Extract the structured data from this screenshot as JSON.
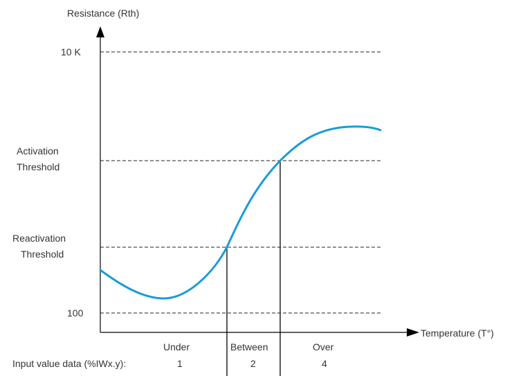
{
  "y_axis": {
    "label": "Resistance (Rth)"
  },
  "x_axis": {
    "label": "Temperature (T°)"
  },
  "levels": {
    "ten_k": "10 K",
    "activation": [
      "Activation",
      "Threshold"
    ],
    "reactivation": [
      "Reactivation",
      "Threshold"
    ],
    "hundred": "100"
  },
  "zones": {
    "under": "Under",
    "between": "Between",
    "over": "Over"
  },
  "input_row": {
    "label": "Input value data (%IWx.y):",
    "under_value": "1",
    "between_value": "2",
    "over_value": "4"
  },
  "colors": {
    "curve": "#1a9bd8",
    "axis": "#000000",
    "text": "#333333"
  }
}
